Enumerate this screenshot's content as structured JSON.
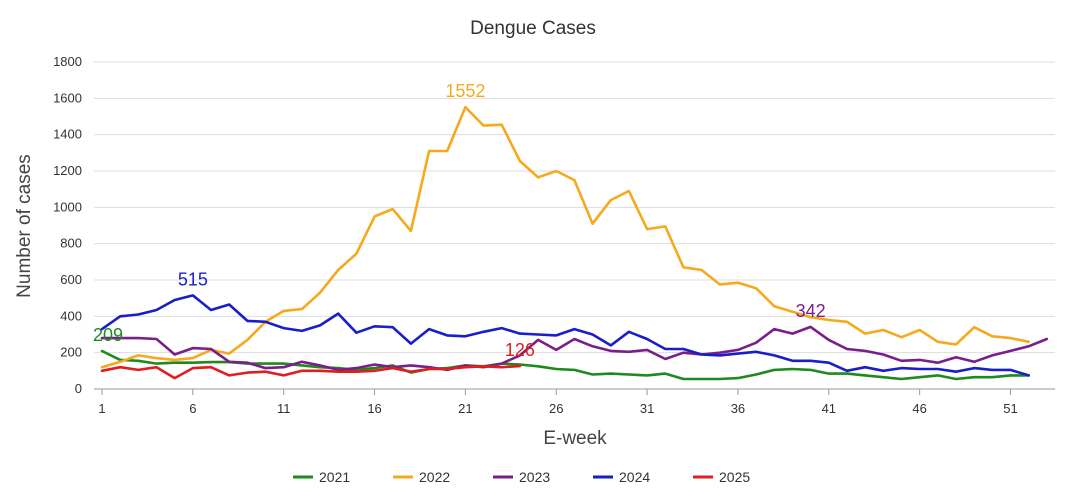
{
  "chart_data": {
    "type": "line",
    "title": "Dengue Cases",
    "xlabel": "E-week",
    "ylabel": "Number of cases",
    "xlim": [
      1,
      53
    ],
    "ylim": [
      0,
      1800
    ],
    "x_ticks": [
      1,
      6,
      11,
      16,
      21,
      26,
      31,
      36,
      41,
      46,
      51
    ],
    "y_ticks": [
      0,
      200,
      400,
      600,
      800,
      1000,
      1200,
      1400,
      1600,
      1800
    ],
    "grid": "horizontal",
    "legend_position": "bottom",
    "series": [
      {
        "name": "2021",
        "color": "#1e8a1e",
        "x_start": 1,
        "values": [
          209,
          160,
          155,
          140,
          145,
          145,
          148,
          148,
          140,
          140,
          140,
          130,
          120,
          115,
          105,
          115,
          130,
          90,
          110,
          115,
          130,
          125,
          140,
          135,
          125,
          110,
          105,
          80,
          85,
          80,
          75,
          85,
          55,
          55,
          55,
          60,
          80,
          105,
          110,
          105,
          85,
          85,
          75,
          65,
          55,
          65,
          75,
          55,
          65,
          65,
          75,
          75
        ]
      },
      {
        "name": "2022",
        "color": "#f5a91c",
        "x_start": 1,
        "values": [
          120,
          150,
          185,
          170,
          160,
          170,
          215,
          195,
          270,
          370,
          430,
          440,
          530,
          655,
          745,
          950,
          990,
          870,
          1310,
          1310,
          1552,
          1450,
          1455,
          1255,
          1165,
          1200,
          1150,
          910,
          1040,
          1090,
          880,
          895,
          670,
          655,
          575,
          585,
          555,
          455,
          425,
          395,
          380,
          370,
          305,
          325,
          285,
          325,
          260,
          245,
          340,
          290,
          280,
          260
        ]
      },
      {
        "name": "2023",
        "color": "#7a1f8a",
        "x_start": 1,
        "values": [
          280,
          280,
          280,
          275,
          190,
          225,
          220,
          150,
          145,
          115,
          120,
          150,
          130,
          105,
          115,
          135,
          120,
          130,
          120,
          105,
          130,
          120,
          140,
          185,
          270,
          215,
          275,
          235,
          210,
          205,
          215,
          165,
          200,
          190,
          200,
          215,
          255,
          330,
          305,
          342,
          270,
          220,
          210,
          190,
          155,
          160,
          145,
          175,
          150,
          185,
          210,
          235,
          275
        ]
      },
      {
        "name": "2024",
        "color": "#1a1ec8",
        "x_start": 1,
        "values": [
          330,
          400,
          410,
          435,
          490,
          515,
          435,
          465,
          375,
          370,
          335,
          320,
          350,
          415,
          310,
          345,
          340,
          250,
          330,
          295,
          290,
          315,
          335,
          305,
          300,
          295,
          330,
          300,
          240,
          315,
          275,
          220,
          220,
          190,
          185,
          195,
          205,
          185,
          155,
          155,
          145,
          100,
          120,
          100,
          115,
          110,
          110,
          95,
          115,
          105,
          105,
          75
        ]
      },
      {
        "name": "2025",
        "color": "#e01e1e",
        "x_start": 1,
        "values": [
          100,
          120,
          105,
          120,
          60,
          115,
          120,
          75,
          90,
          95,
          75,
          100,
          100,
          95,
          95,
          100,
          115,
          95,
          110,
          110,
          120,
          125,
          120,
          126
        ]
      }
    ],
    "annotations": [
      {
        "text": "209",
        "series": "2021",
        "x": 1,
        "y": 209
      },
      {
        "text": "1552",
        "series": "2022",
        "x": 21,
        "y": 1552
      },
      {
        "text": "342",
        "series": "2023",
        "x": 40,
        "y": 342
      },
      {
        "text": "515",
        "series": "2024",
        "x": 6,
        "y": 515
      },
      {
        "text": "126",
        "series": "2025",
        "x": 24,
        "y": 126
      }
    ]
  }
}
